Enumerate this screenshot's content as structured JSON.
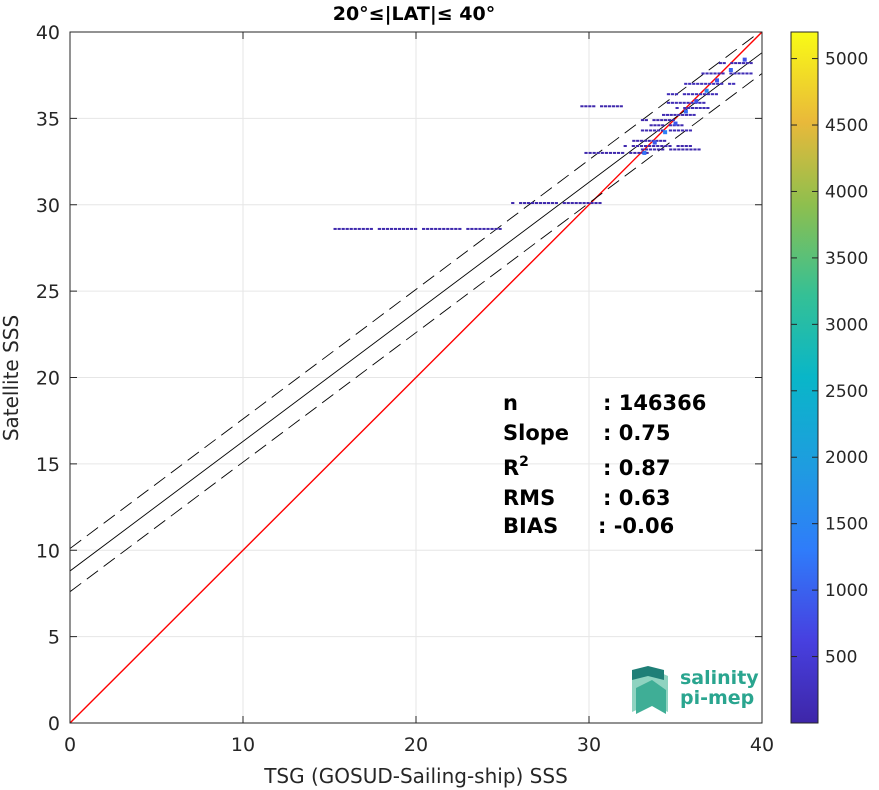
{
  "chart_data": {
    "type": "scatter",
    "title": "20°≤|LAT|≤ 40°",
    "xlabel": "TSG (GOSUD-Sailing-ship) SSS",
    "ylabel": "Satellite SSS",
    "xlim": [
      0,
      40
    ],
    "ylim": [
      0,
      40
    ],
    "xticks": [
      0,
      10,
      20,
      30,
      40
    ],
    "yticks": [
      0,
      5,
      10,
      15,
      20,
      25,
      30,
      35,
      40
    ],
    "grid": true,
    "colorbar": {
      "range": [
        0,
        5200
      ],
      "ticks": [
        500,
        1000,
        1500,
        2000,
        2500,
        3000,
        3500,
        4000,
        4500,
        5000
      ],
      "colormap": "parula"
    },
    "lines": [
      {
        "kind": "identity",
        "color": "#ff0000",
        "x": [
          0,
          40
        ],
        "y": [
          0,
          40
        ]
      },
      {
        "kind": "regression",
        "color": "#000000",
        "style": "solid",
        "x": [
          0,
          40
        ],
        "y": [
          8.8,
          38.8
        ]
      },
      {
        "kind": "upper-bound",
        "color": "#000000",
        "style": "dashed",
        "x": [
          0,
          40
        ],
        "y": [
          10.1,
          40.1
        ]
      },
      {
        "kind": "lower-bound",
        "color": "#000000",
        "style": "dashed",
        "x": [
          0,
          40
        ],
        "y": [
          7.6,
          37.6
        ]
      }
    ],
    "segments": [
      {
        "x0": 15.0,
        "x1": 25.0,
        "y": 28.6,
        "count": 60
      },
      {
        "x0": 25.5,
        "x1": 31.0,
        "y": 30.1,
        "count": 60
      },
      {
        "x0": 29.5,
        "x1": 33.5,
        "y": 33.0,
        "count": 40
      },
      {
        "x0": 32.0,
        "x1": 36.0,
        "y": 33.4,
        "count": 40
      },
      {
        "x0": 33.0,
        "x1": 36.5,
        "y": 33.2,
        "count": 60
      },
      {
        "x0": 29.5,
        "x1": 32.0,
        "y": 35.7,
        "count": 40
      },
      {
        "x0": 33.0,
        "x1": 35.0,
        "y": 34.9,
        "count": 40
      },
      {
        "x0": 34.0,
        "x1": 36.2,
        "y": 35.2,
        "count": 120
      },
      {
        "x0": 34.5,
        "x1": 37.0,
        "y": 35.9,
        "count": 160
      },
      {
        "x0": 34.5,
        "x1": 37.5,
        "y": 36.4,
        "count": 180
      },
      {
        "x0": 35.5,
        "x1": 38.5,
        "y": 37.0,
        "count": 200
      },
      {
        "x0": 36.5,
        "x1": 39.5,
        "y": 37.6,
        "count": 160
      },
      {
        "x0": 37.5,
        "x1": 39.5,
        "y": 38.2,
        "count": 80
      },
      {
        "x0": 33.0,
        "x1": 36.0,
        "y": 34.3,
        "count": 120
      },
      {
        "x0": 32.5,
        "x1": 34.5,
        "y": 33.7,
        "count": 60
      },
      {
        "x0": 35.0,
        "x1": 37.0,
        "y": 35.6,
        "count": 160
      },
      {
        "x0": 33.5,
        "x1": 35.5,
        "y": 34.6,
        "count": 90
      }
    ],
    "density_points": [
      {
        "x": 33.2,
        "y": 33.0,
        "count": 1200
      },
      {
        "x": 33.8,
        "y": 33.6,
        "count": 900
      },
      {
        "x": 34.4,
        "y": 34.2,
        "count": 1400
      },
      {
        "x": 35.0,
        "y": 34.7,
        "count": 900
      },
      {
        "x": 35.6,
        "y": 35.4,
        "count": 1100
      },
      {
        "x": 36.2,
        "y": 36.0,
        "count": 800
      },
      {
        "x": 36.8,
        "y": 36.6,
        "count": 1500
      },
      {
        "x": 37.4,
        "y": 37.2,
        "count": 900
      },
      {
        "x": 38.2,
        "y": 37.8,
        "count": 1000
      },
      {
        "x": 39.0,
        "y": 38.4,
        "count": 800
      }
    ],
    "stats": [
      {
        "label": "n",
        "value": ": 146366"
      },
      {
        "label": "Slope",
        "value": ": 0.75"
      },
      {
        "label": "R",
        "sup": "2",
        "value": ": 0.87"
      },
      {
        "label": "RMS",
        "value": ": 0.63"
      },
      {
        "label": "BIAS",
        "value": ": -0.06"
      }
    ]
  },
  "logo": {
    "line1": "salinity",
    "line2": "pi-mep"
  },
  "colors": {
    "identity": "#ff0000",
    "fit": "#000000",
    "logo": "#2aa58f"
  }
}
